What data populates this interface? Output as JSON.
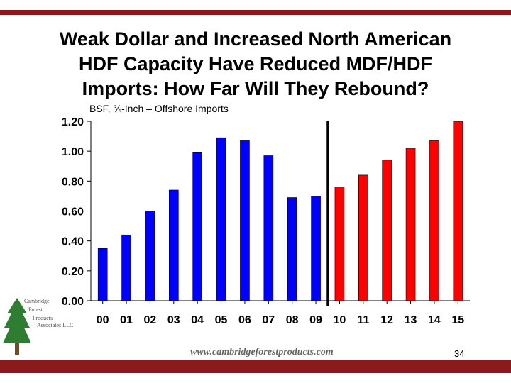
{
  "slide": {
    "title_line1": "Weak Dollar and Increased North American",
    "title_line2": "HDF Capacity Have Reduced MDF/HDF",
    "title_line3": "Imports: How Far Will They Rebound?",
    "page_number": "34",
    "website": "www.cambridgeforestproducts.com",
    "logo_lines": [
      "Cambridge",
      "Forest",
      "Products",
      "Associates LLC"
    ]
  },
  "colors": {
    "actual": "#0000ff",
    "forecast": "#ff0000",
    "accent_bar": "#8b1a1a",
    "logo_green": "#2e7d32"
  },
  "chart_data": {
    "type": "bar",
    "title": "BSF, ¾-Inch – Offshore Imports",
    "categories": [
      "00",
      "01",
      "02",
      "03",
      "04",
      "05",
      "06",
      "07",
      "08",
      "09",
      "10",
      "11",
      "12",
      "13",
      "14",
      "15"
    ],
    "values": [
      0.35,
      0.44,
      0.6,
      0.74,
      0.99,
      1.09,
      1.07,
      0.97,
      0.69,
      0.7,
      0.76,
      0.84,
      0.94,
      1.02,
      1.07,
      1.2
    ],
    "series_split": {
      "actual_through": "09",
      "forecast_from": "10"
    },
    "ylim": [
      0,
      1.2
    ],
    "yticks": [
      "0.00",
      "0.20",
      "0.40",
      "0.60",
      "0.80",
      "1.00",
      "1.20"
    ],
    "xlabel": "",
    "ylabel": "",
    "grid": false
  }
}
